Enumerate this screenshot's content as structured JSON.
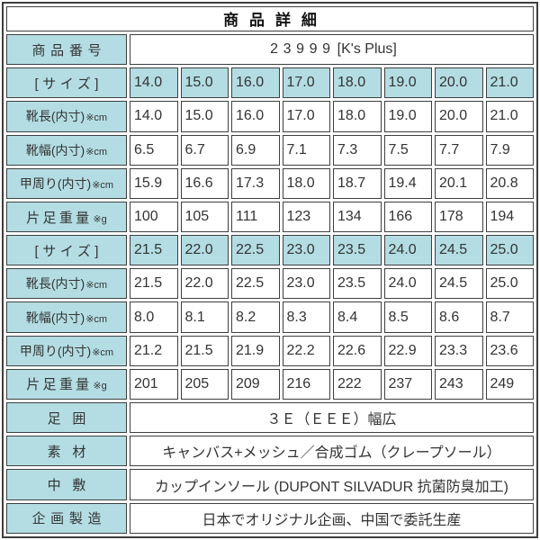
{
  "title": "商品詳細",
  "colors": {
    "accent": "#b3dde3",
    "border": "#3e3e3e",
    "text": "#333333"
  },
  "product_number": {
    "label": "商品番号",
    "number": "23999",
    "brand": "[K's Plus]"
  },
  "size_block_1": {
    "size_label": "[サイズ]",
    "sizes": [
      "14.0",
      "15.0",
      "16.0",
      "17.0",
      "18.0",
      "19.0",
      "20.0",
      "21.0"
    ],
    "rows": [
      {
        "label": "靴長(内寸)",
        "suffix": "※cm",
        "values": [
          "14.0",
          "15.0",
          "16.0",
          "17.0",
          "18.0",
          "19.0",
          "20.0",
          "21.0"
        ]
      },
      {
        "label": "靴幅(内寸)",
        "suffix": "※cm",
        "values": [
          "6.5",
          "6.7",
          "6.9",
          "7.1",
          "7.3",
          "7.5",
          "7.7",
          "7.9"
        ]
      },
      {
        "label": "甲周り(内寸)",
        "suffix": "※cm",
        "values": [
          "15.9",
          "16.6",
          "17.3",
          "18.0",
          "18.7",
          "19.4",
          "20.1",
          "20.8"
        ]
      },
      {
        "label": "片足重量",
        "suffix": "※g",
        "values": [
          "100",
          "105",
          "111",
          "123",
          "134",
          "166",
          "178",
          "194"
        ]
      }
    ]
  },
  "size_block_2": {
    "size_label": "[サイズ]",
    "sizes": [
      "21.5",
      "22.0",
      "22.5",
      "23.0",
      "23.5",
      "24.0",
      "24.5",
      "25.0"
    ],
    "rows": [
      {
        "label": "靴長(内寸)",
        "suffix": "※cm",
        "values": [
          "21.5",
          "22.0",
          "22.5",
          "23.0",
          "23.5",
          "24.0",
          "24.5",
          "25.0"
        ]
      },
      {
        "label": "靴幅(内寸)",
        "suffix": "※cm",
        "values": [
          "8.0",
          "8.1",
          "8.2",
          "8.3",
          "8.4",
          "8.5",
          "8.6",
          "8.7"
        ]
      },
      {
        "label": "甲周り(内寸)",
        "suffix": "※cm",
        "values": [
          "21.2",
          "21.5",
          "21.9",
          "22.2",
          "22.6",
          "22.9",
          "23.3",
          "23.6"
        ]
      },
      {
        "label": "片足重量",
        "suffix": "※g",
        "values": [
          "201",
          "205",
          "209",
          "216",
          "222",
          "237",
          "243",
          "249"
        ]
      }
    ]
  },
  "info_rows": [
    {
      "label": "足囲",
      "value": "３Ｅ（ＥＥＥ）幅広"
    },
    {
      "label": "素材",
      "value": "キャンバス+メッシュ／合成ゴム（クレープソール）"
    },
    {
      "label": "中敷",
      "value": "カップインソール (DUPONT SILVADUR 抗菌防臭加工)"
    },
    {
      "label": "企画製造",
      "value": "日本でオリジナル企画、中国で委託生産"
    }
  ]
}
